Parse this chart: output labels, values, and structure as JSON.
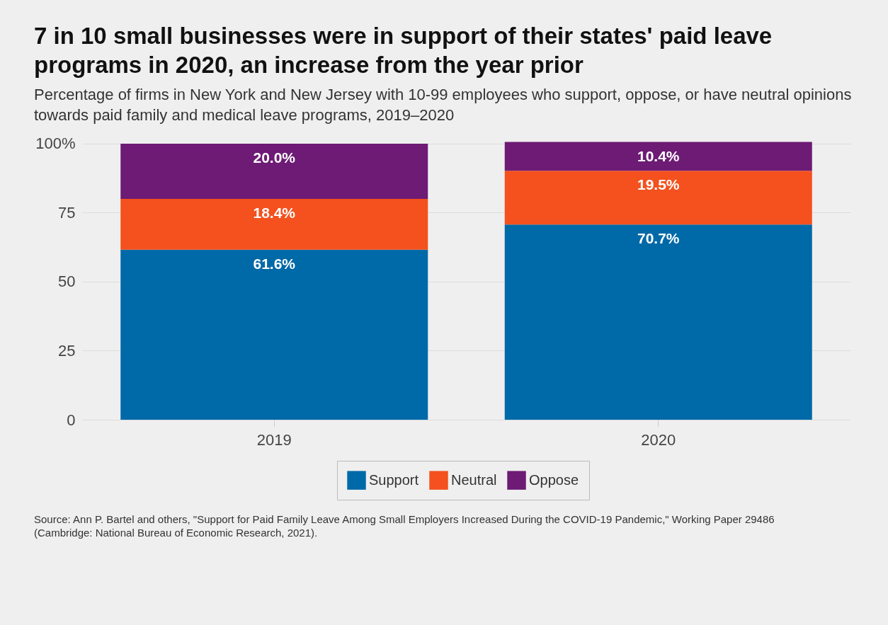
{
  "chart_data": {
    "type": "bar",
    "title": "7 in 10 small businesses were in support of their states' paid leave programs in 2020, an increase from the year prior",
    "subtitle": "Percentage of firms in New York and New Jersey with 10-99 employees who support, oppose, or have neutral opinions towards paid family and medical leave programs, 2019–2020",
    "categories": [
      "2019",
      "2020"
    ],
    "stacked": true,
    "series": [
      {
        "name": "Support",
        "color": "#0069a8",
        "values": [
          61.6,
          70.7
        ],
        "value_labels": [
          "61.6%",
          "70.7%"
        ]
      },
      {
        "name": "Neutral",
        "color": "#f4511e",
        "values": [
          18.4,
          19.5
        ],
        "value_labels": [
          "18.4%",
          "19.5%"
        ]
      },
      {
        "name": "Oppose",
        "color": "#6d1b74",
        "values": [
          20.0,
          10.4
        ],
        "value_labels": [
          "20.0%",
          "10.4%"
        ]
      }
    ],
    "ylim": [
      0,
      101
    ],
    "yticks": [
      0,
      25,
      50,
      75,
      {
        "value": 100,
        "label": "100%"
      }
    ],
    "grid": "y",
    "legend": "bottom",
    "annotations": [
      "Source: Ann P. Bartel and others, \"Support for Paid Family Leave Among Small Employers Increased During the COVID-19 Pandemic,\" Working Paper 29486 (Cambridge: National Bureau of Economic Research, 2021)."
    ]
  }
}
